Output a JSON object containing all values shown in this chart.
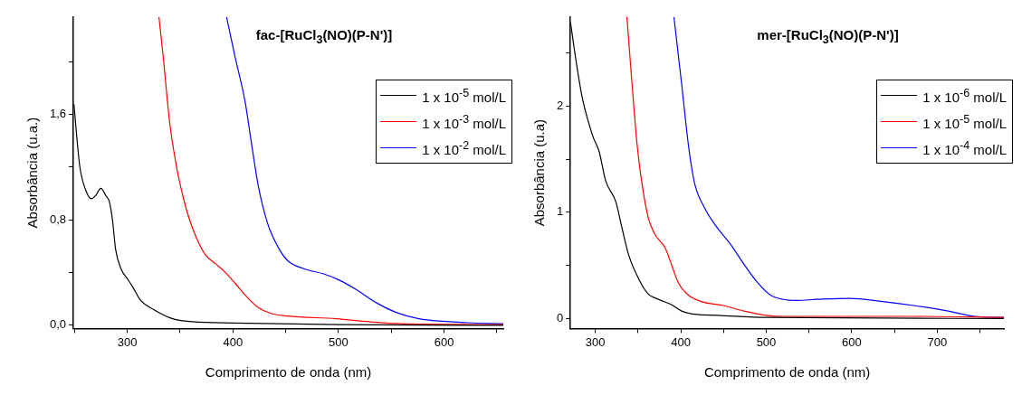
{
  "chart_data": [
    {
      "type": "line",
      "title": "fac-[RuCl$_{3}$(NO)(P-N')]",
      "xlabel": "Comprimento de onda (nm)",
      "ylabel": "Absorbância (u.a.)",
      "xlim": [
        249,
        656
      ],
      "xticks": [
        {
          "value": 250,
          "label": null
        },
        300,
        {
          "value": 350,
          "label": null
        },
        400,
        {
          "value": 450,
          "label": null
        },
        500,
        {
          "value": 550,
          "label": null
        },
        600,
        {
          "value": 650,
          "label": null
        }
      ],
      "ylim": [
        -0.024,
        2.34
      ],
      "yticks": [
        {
          "value": 0,
          "label": "0,0"
        },
        {
          "value": 0.4,
          "label": null
        },
        {
          "value": 0.8,
          "label": "0,8"
        },
        {
          "value": 1.2,
          "label": null
        },
        {
          "value": 1.6,
          "label": "1,6"
        },
        {
          "value": 2.0,
          "label": null
        }
      ],
      "grid": false,
      "legend": "top right",
      "marker": "none",
      "line_style": "solid",
      "series": [
        {
          "name": "1 x 10$^{-5}$ mol/L",
          "color": "#000000",
          "x": [
            249.5,
            255,
            261,
            266,
            270.5,
            275,
            280,
            283,
            286,
            289,
            294,
            300,
            306,
            312,
            325,
            343,
            362,
            400,
            500,
            656
          ],
          "values": [
            1.68,
            1.21,
            1.02,
            0.96,
            0.99,
            1.04,
            0.98,
            0.94,
            0.8,
            0.575,
            0.43,
            0.355,
            0.28,
            0.196,
            0.12,
            0.05,
            0.027,
            0.017,
            0.005,
            0.0
          ]
        },
        {
          "name": "1 x 10$^{-3}$ mol/L",
          "color": "#ff0000",
          "x": [
            330,
            334,
            340,
            346.5,
            353,
            359,
            368,
            374.5,
            384,
            393,
            402,
            411.5,
            424,
            436,
            452,
            498,
            529,
            560,
            656
          ],
          "values": [
            2.34,
            2.04,
            1.55,
            1.21,
            0.97,
            0.8,
            0.62,
            0.53,
            0.465,
            0.4,
            0.32,
            0.23,
            0.135,
            0.09,
            0.07,
            0.05,
            0.027,
            0.012,
            0.005
          ]
        },
        {
          "name": "1 x 10$^{-2}$ mol/L",
          "color": "#0000ff",
          "x": [
            394,
            402,
            411.5,
            418,
            424,
            433,
            443,
            452,
            467,
            486,
            501.5,
            517,
            536,
            554,
            576,
            601,
            622,
            656
          ],
          "values": [
            2.34,
            2.04,
            1.7,
            1.36,
            1.06,
            0.77,
            0.59,
            0.49,
            0.43,
            0.39,
            0.34,
            0.27,
            0.17,
            0.1,
            0.05,
            0.03,
            0.02,
            0.012
          ]
        }
      ]
    },
    {
      "type": "line",
      "title": "mer-[RuCl$_{3}$(NO)(P-N')]",
      "xlabel": "Comprimento de onda (nm)",
      "ylabel": "Absorbância (u.a)",
      "xlim": [
        271,
        778
      ],
      "xticks": [
        300,
        {
          "value": 350,
          "label": null
        },
        400,
        {
          "value": 450,
          "label": null
        },
        500,
        {
          "value": 550,
          "label": null
        },
        600,
        {
          "value": 650,
          "label": null
        },
        700,
        {
          "value": 750,
          "label": null
        }
      ],
      "ylim": [
        -0.094,
        2.84
      ],
      "yticks": [
        0,
        {
          "value": 0.5,
          "label": null
        },
        1,
        {
          "value": 1.5,
          "label": null
        },
        2,
        {
          "value": 2.5,
          "label": null
        }
      ],
      "grid": false,
      "legend": "top right",
      "marker": "none",
      "line_style": "solid",
      "series": [
        {
          "name": "1 x 10$^{-6}$ mol/L",
          "color": "#000000",
          "x": [
            271,
            277.6,
            285,
            297,
            304.6,
            312,
            324,
            331.6,
            339,
            351,
            362,
            374,
            389,
            401,
            416,
            443,
            500,
            778
          ],
          "values": [
            2.79,
            2.42,
            2.07,
            1.72,
            1.57,
            1.3,
            1.1,
            0.84,
            0.6,
            0.37,
            0.23,
            0.18,
            0.13,
            0.07,
            0.04,
            0.03,
            0.01,
            0.0
          ]
        },
        {
          "name": "1 x 10$^{-5}$ mol/L",
          "color": "#ff0000",
          "x": [
            337,
            343,
            349,
            355,
            362,
            370,
            382,
            389,
            397,
            409,
            424,
            451,
            474,
            500,
            520,
            674.5,
            778
          ],
          "values": [
            2.84,
            2.21,
            1.63,
            1.25,
            0.95,
            0.79,
            0.66,
            0.51,
            0.34,
            0.22,
            0.16,
            0.12,
            0.07,
            0.03,
            0.02,
            0.02,
            0.01
          ]
        },
        {
          "name": "1 x 10$^{-4}$ mol/L",
          "color": "#0000ff",
          "x": [
            392,
            401,
            409,
            416,
            428,
            439.5,
            459,
            474,
            489.6,
            505,
            520,
            536,
            559,
            597.5,
            636,
            674.5,
            713,
            744,
            778
          ],
          "values": [
            2.84,
            2.21,
            1.63,
            1.28,
            1.04,
            0.89,
            0.69,
            0.51,
            0.34,
            0.22,
            0.18,
            0.17,
            0.18,
            0.19,
            0.16,
            0.12,
            0.07,
            0.02,
            0.01
          ]
        }
      ]
    }
  ]
}
